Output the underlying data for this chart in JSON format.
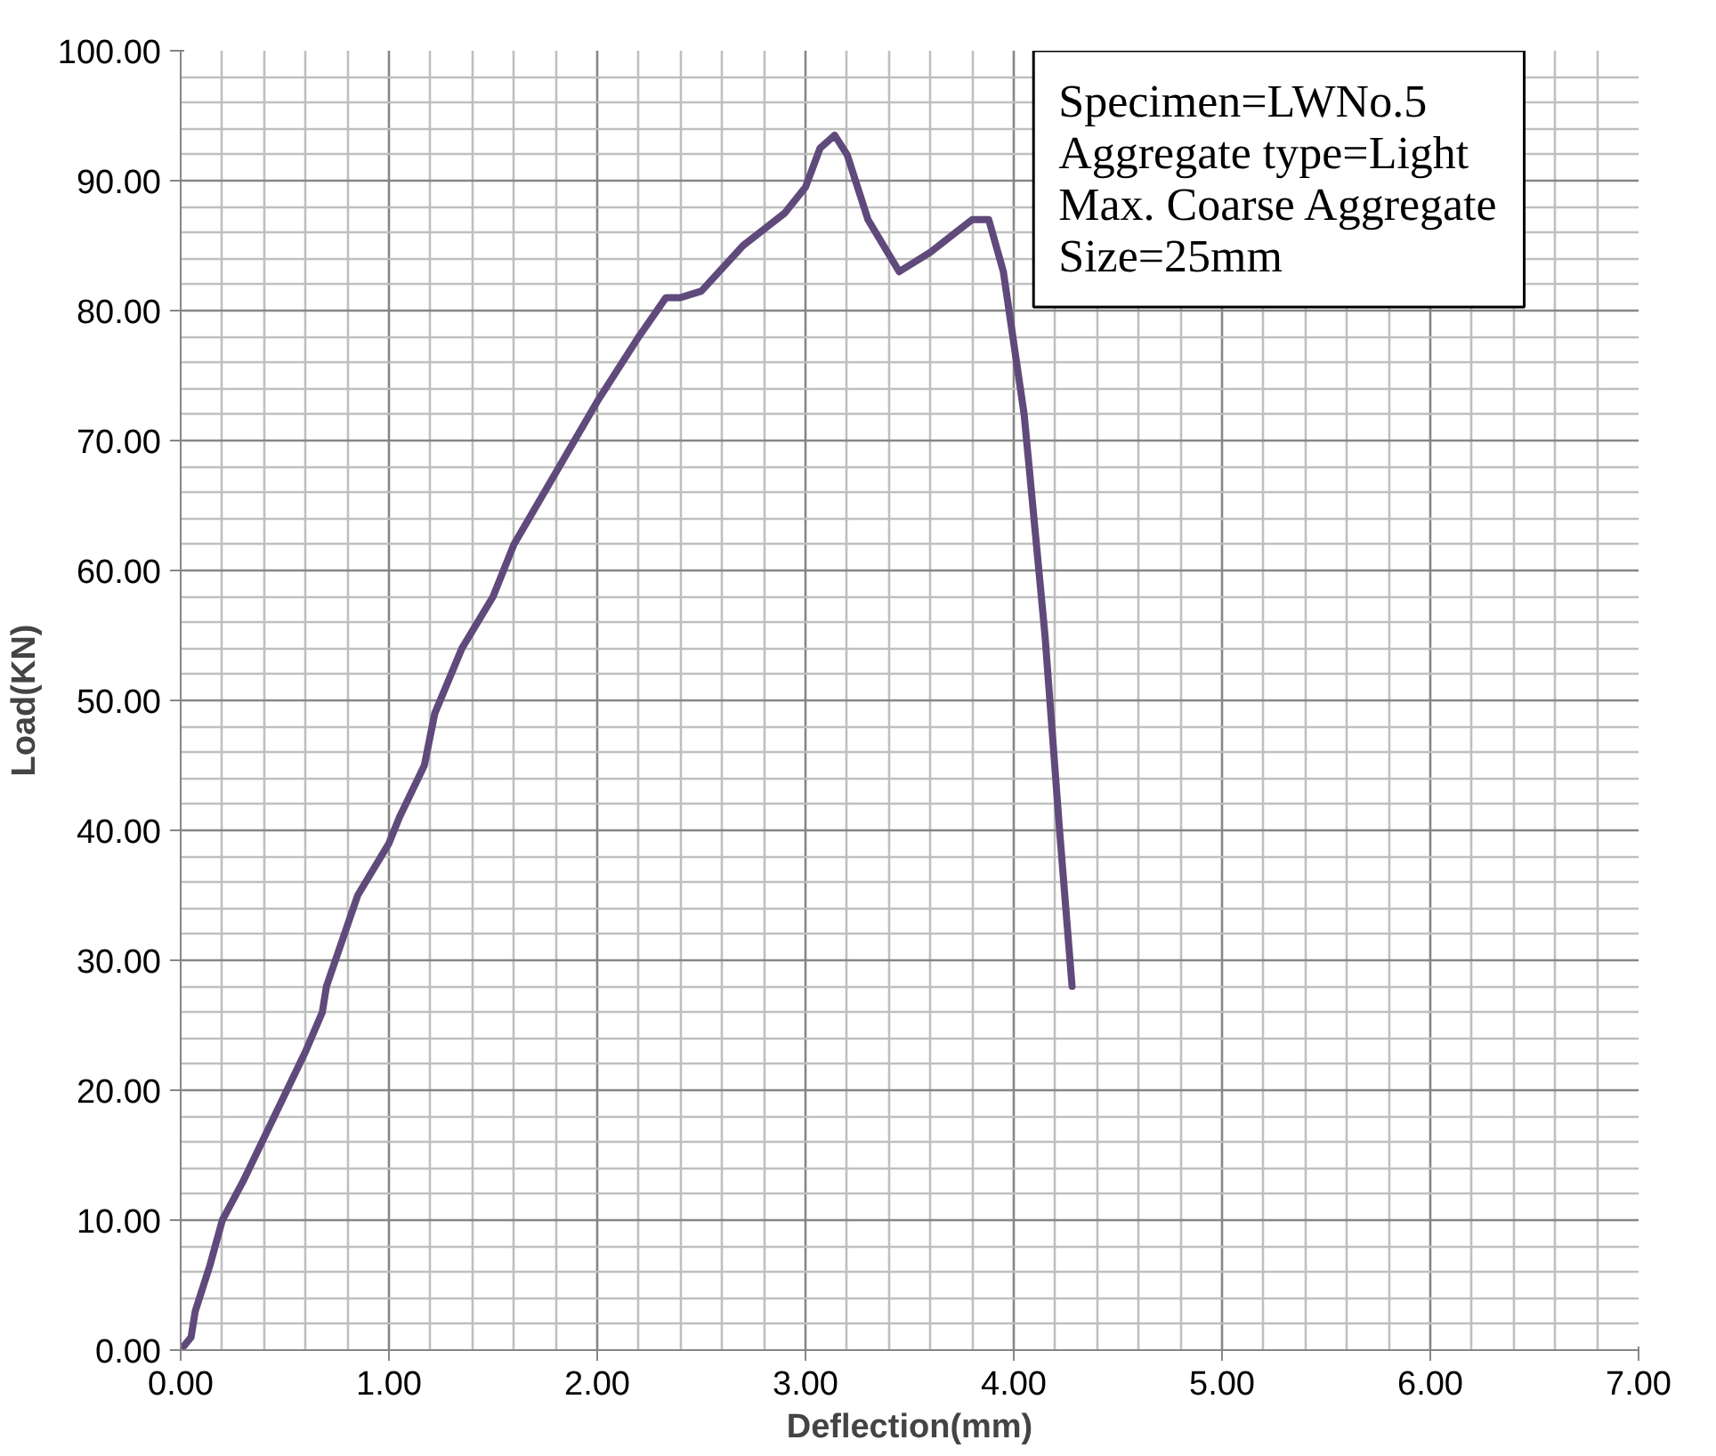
{
  "chart_data": {
    "type": "line",
    "xlabel": "Deflection(mm)",
    "ylabel": "Load(KN)",
    "annotations": [
      "Specimen=LWNo.5",
      "Aggregate type=Light",
      "Max. Coarse Aggregate Size=25mm"
    ],
    "x": [
      0,
      0.05,
      0.07,
      0.14,
      0.2,
      0.3,
      0.45,
      0.6,
      0.68,
      0.7,
      0.85,
      1.0,
      1.05,
      1.17,
      1.22,
      1.35,
      1.5,
      1.55,
      1.6,
      1.8,
      2.0,
      2.2,
      2.33,
      2.4,
      2.5,
      2.7,
      2.9,
      3.0,
      3.07,
      3.14,
      3.2,
      3.3,
      3.45,
      3.6,
      3.8,
      3.88,
      3.95,
      4.05,
      4.15,
      4.22,
      4.28
    ],
    "series": [
      {
        "color": "#604a7b",
        "values": [
          0,
          1,
          3,
          6.5,
          10,
          13,
          18,
          23,
          26,
          28,
          35,
          39,
          41,
          45,
          49,
          54,
          58,
          60,
          62,
          67.5,
          73,
          78,
          81,
          81,
          81.5,
          85,
          87.5,
          89.5,
          92.5,
          93.5,
          92,
          87,
          83,
          84.5,
          87,
          87,
          83,
          72,
          55,
          40,
          28
        ]
      }
    ],
    "xlim": [
      0,
      7
    ],
    "ylim": [
      0,
      100
    ],
    "xticks": [
      {
        "value": 0,
        "label": "0.00"
      },
      {
        "value": 1,
        "label": "1.00"
      },
      {
        "value": 2,
        "label": "2.00"
      },
      {
        "value": 3,
        "label": "3.00"
      },
      {
        "value": 4,
        "label": "4.00"
      },
      {
        "value": 5,
        "label": "5.00"
      },
      {
        "value": 6,
        "label": "6.00"
      },
      {
        "value": 7,
        "label": "7.00"
      }
    ],
    "yticks": [
      {
        "value": 0,
        "label": "0.00"
      },
      {
        "value": 10,
        "label": "10.00"
      },
      {
        "value": 20,
        "label": "20.00"
      },
      {
        "value": 30,
        "label": "30.00"
      },
      {
        "value": 40,
        "label": "40.00"
      },
      {
        "value": 50,
        "label": "50.00"
      },
      {
        "value": 60,
        "label": "60.00"
      },
      {
        "value": 70,
        "label": "70.00"
      },
      {
        "value": 80,
        "label": "80.00"
      },
      {
        "value": 90,
        "label": "90.00"
      },
      {
        "value": 100,
        "label": "100.00"
      }
    ],
    "grid": true,
    "marker": "none",
    "line_style": "solid"
  }
}
